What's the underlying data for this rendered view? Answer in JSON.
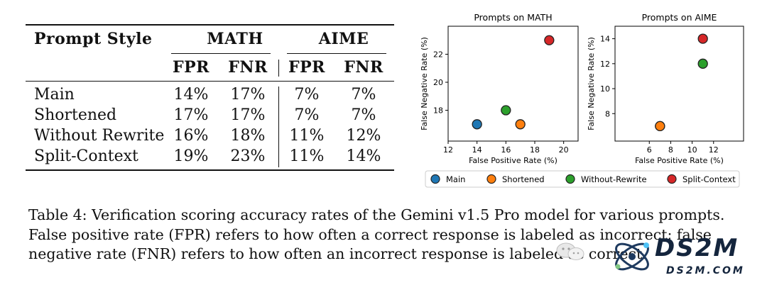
{
  "table": {
    "col_header": "Prompt Style",
    "groups": [
      "MATH",
      "AIME"
    ],
    "metrics": [
      "FPR",
      "FNR",
      "FPR",
      "FNR"
    ],
    "rows": [
      {
        "style": "Main",
        "values": [
          "14%",
          "17%",
          "7%",
          "7%"
        ]
      },
      {
        "style": "Shortened",
        "values": [
          "17%",
          "17%",
          "7%",
          "7%"
        ]
      },
      {
        "style": "Without Rewrite",
        "values": [
          "16%",
          "18%",
          "11%",
          "12%"
        ]
      },
      {
        "style": "Split-Context",
        "values": [
          "19%",
          "23%",
          "11%",
          "14%"
        ]
      }
    ]
  },
  "chart_data": [
    {
      "type": "scatter",
      "title": "Prompts on MATH",
      "xlabel": "False Positive Rate (%)",
      "ylabel": "False Negative Rate (%)",
      "xlim": [
        12,
        21
      ],
      "ylim": [
        15.8,
        24
      ],
      "xticks": [
        12,
        14,
        16,
        18,
        20
      ],
      "yticks": [
        18,
        20,
        22
      ],
      "series": [
        {
          "name": "Main",
          "x": [
            14
          ],
          "y": [
            17
          ],
          "color": "#1f77b4"
        },
        {
          "name": "Shortened",
          "x": [
            17
          ],
          "y": [
            17
          ],
          "color": "#ff7f0e"
        },
        {
          "name": "Without-Rewrite",
          "x": [
            16
          ],
          "y": [
            18
          ],
          "color": "#2ca02c"
        },
        {
          "name": "Split-Context",
          "x": [
            19
          ],
          "y": [
            23
          ],
          "color": "#d62728"
        }
      ]
    },
    {
      "type": "scatter",
      "title": "Prompts on AIME",
      "xlabel": "False Positive Rate (%)",
      "ylabel": "False Negative Rate (%)",
      "xlim": [
        2.8,
        14.8
      ],
      "ylim": [
        5.8,
        15
      ],
      "xticks": [
        6,
        8,
        10,
        12
      ],
      "yticks": [
        8,
        10,
        12,
        14
      ],
      "series": [
        {
          "name": "Main",
          "x": [
            7
          ],
          "y": [
            7
          ],
          "color": "#1f77b4"
        },
        {
          "name": "Shortened",
          "x": [
            7
          ],
          "y": [
            7
          ],
          "color": "#ff7f0e"
        },
        {
          "name": "Without-Rewrite",
          "x": [
            11
          ],
          "y": [
            12
          ],
          "color": "#2ca02c"
        },
        {
          "name": "Split-Context",
          "x": [
            11
          ],
          "y": [
            14
          ],
          "color": "#d62728"
        }
      ]
    }
  ],
  "legend": {
    "placement": "bottom",
    "items": [
      {
        "label": "Main",
        "color": "#1f77b4"
      },
      {
        "label": "Shortened",
        "color": "#ff7f0e"
      },
      {
        "label": "Without-Rewrite",
        "color": "#2ca02c"
      },
      {
        "label": "Split-Context",
        "color": "#d62728"
      }
    ]
  },
  "caption": "Table 4: Verification scoring accuracy rates of the Gemini v1.5 Pro model for various prompts. False positive rate (FPR) refers to how often a correct response is labeled as incorrect; false negative rate (FNR) refers to how often an incorrect response is labeled as correct.",
  "watermark": {
    "brand": "DS2M",
    "site": "DS2M.COM"
  }
}
